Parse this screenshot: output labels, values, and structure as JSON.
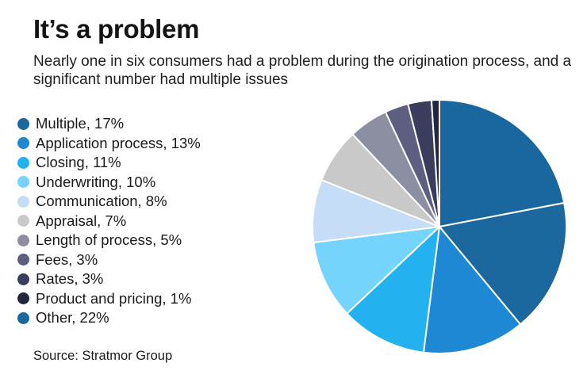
{
  "header": {
    "title": "It’s a problem",
    "subtitle": "Nearly one in six consumers had a problem during the origination process, and a significant number had multiple issues"
  },
  "source": "Source: Stratmor Group",
  "chart_data": {
    "type": "pie",
    "title": "It’s a problem",
    "subtitle": "Nearly one in six consumers had a problem during the origination process, and a significant number had multiple issues",
    "legend_position": "left",
    "start_angle": "12 o'clock",
    "direction": "clockwise",
    "slice_order": [
      "Other",
      "Multiple",
      "Application process",
      "Closing",
      "Underwriting",
      "Communication",
      "Appraisal",
      "Length of process",
      "Fees",
      "Rates",
      "Product and pricing"
    ],
    "slices": [
      {
        "label": "Multiple",
        "value": 17,
        "legend_text": "Multiple, 17%",
        "color": "#1b679e"
      },
      {
        "label": "Application process",
        "value": 13,
        "legend_text": "Application process, 13%",
        "color": "#1e88d4"
      },
      {
        "label": "Closing",
        "value": 11,
        "legend_text": "Closing, 11%",
        "color": "#23b2ef"
      },
      {
        "label": "Underwriting",
        "value": 10,
        "legend_text": "Underwriting, 10%",
        "color": "#74d4fb"
      },
      {
        "label": "Communication",
        "value": 8,
        "legend_text": "Communication, 8%",
        "color": "#c5ddf6"
      },
      {
        "label": "Appraisal",
        "value": 7,
        "legend_text": "Appraisal, 7%",
        "color": "#c9c9c9"
      },
      {
        "label": "Length of process",
        "value": 5,
        "legend_text": "Length of process, 5%",
        "color": "#8c8ea1"
      },
      {
        "label": "Fees",
        "value": 3,
        "legend_text": "Fees, 3%",
        "color": "#5d5e80"
      },
      {
        "label": "Rates",
        "value": 3,
        "legend_text": "Rates, 3%",
        "color": "#3b3d5e"
      },
      {
        "label": "Product and pricing",
        "value": 1,
        "legend_text": "Product and pricing, 1%",
        "color": "#22263f"
      },
      {
        "label": "Other",
        "value": 22,
        "legend_text": "Other, 22%",
        "color": "#1a67a0"
      }
    ]
  }
}
